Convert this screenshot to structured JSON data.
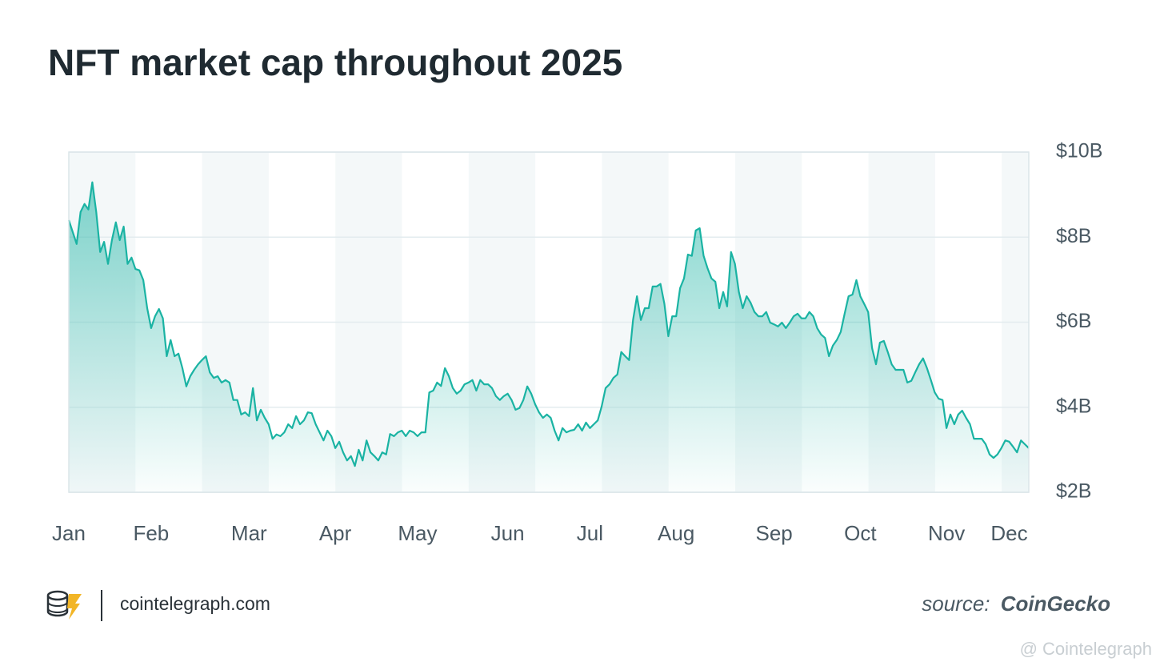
{
  "chart_data": {
    "type": "area",
    "title": "NFT market cap throughout 2025",
    "footer_site": "cointelegraph.com",
    "source_label": "source:",
    "source_name": "CoinGecko",
    "watermark": "@ Cointelegraph",
    "color": "#1ab3a3",
    "grid": true,
    "ylim": [
      2,
      10
    ],
    "yticks": [
      {
        "value": 2,
        "label": "$2B"
      },
      {
        "value": 4,
        "label": "$4B"
      },
      {
        "value": 6,
        "label": "$6B"
      },
      {
        "value": 8,
        "label": "$8B"
      },
      {
        "value": 10,
        "label": "$10B"
      }
    ],
    "categories": [
      "Jan",
      null,
      null,
      null,
      null,
      null,
      null,
      null,
      null,
      null,
      null,
      null,
      null,
      null,
      null,
      null,
      null,
      null,
      null,
      null,
      null,
      "Feb",
      null,
      null,
      null,
      null,
      null,
      null,
      null,
      null,
      null,
      null,
      null,
      null,
      null,
      null,
      null,
      null,
      null,
      null,
      null,
      null,
      null,
      null,
      null,
      null,
      "Mar",
      null,
      null,
      null,
      null,
      null,
      null,
      null,
      null,
      null,
      null,
      null,
      null,
      null,
      null,
      null,
      null,
      null,
      null,
      null,
      null,
      null,
      "Apr",
      null,
      null,
      null,
      null,
      null,
      null,
      null,
      null,
      null,
      null,
      null,
      null,
      null,
      null,
      null,
      null,
      null,
      null,
      null,
      null,
      "May",
      null,
      null,
      null,
      null,
      null,
      null,
      null,
      null,
      null,
      null,
      null,
      null,
      null,
      null,
      null,
      null,
      null,
      null,
      null,
      null,
      null,
      null,
      "Jun",
      null,
      null,
      null,
      null,
      null,
      null,
      null,
      null,
      null,
      null,
      null,
      null,
      null,
      null,
      null,
      null,
      null,
      null,
      null,
      null,
      "Jul",
      null,
      null,
      null,
      null,
      null,
      null,
      null,
      null,
      null,
      null,
      null,
      null,
      null,
      null,
      null,
      null,
      null,
      null,
      null,
      null,
      null,
      "Aug",
      null,
      null,
      null,
      null,
      null,
      null,
      null,
      null,
      null,
      null,
      null,
      null,
      null,
      null,
      null,
      null,
      null,
      null,
      null,
      null,
      null,
      null,
      null,
      null,
      "Sep",
      null,
      null,
      null,
      null,
      null,
      null,
      null,
      null,
      null,
      null,
      null,
      null,
      null,
      null,
      null,
      null,
      null,
      null,
      null,
      null,
      null,
      "Oct",
      null,
      null,
      null,
      null,
      null,
      null,
      null,
      null,
      null,
      null,
      null,
      null,
      null,
      null,
      null,
      null,
      null,
      null,
      null,
      null,
      null,
      "Nov",
      null,
      null,
      null,
      null,
      null,
      null,
      null,
      null,
      null,
      null,
      null,
      null,
      null,
      null,
      null,
      "Dec",
      null,
      null,
      null,
      null,
      null
    ],
    "values": [
      8.4,
      8.12,
      7.84,
      8.59,
      8.78,
      8.65,
      9.29,
      8.59,
      7.65,
      7.89,
      7.37,
      7.93,
      8.35,
      7.93,
      8.25,
      7.37,
      7.52,
      7.25,
      7.22,
      6.99,
      6.33,
      5.86,
      6.14,
      6.31,
      6.09,
      5.2,
      5.58,
      5.2,
      5.26,
      4.92,
      4.49,
      4.73,
      4.88,
      5.01,
      5.11,
      5.2,
      4.82,
      4.69,
      4.73,
      4.58,
      4.64,
      4.58,
      4.17,
      4.17,
      3.83,
      3.88,
      3.79,
      4.45,
      3.69,
      3.94,
      3.75,
      3.6,
      3.26,
      3.36,
      3.32,
      3.41,
      3.6,
      3.51,
      3.79,
      3.6,
      3.69,
      3.88,
      3.86,
      3.6,
      3.41,
      3.22,
      3.45,
      3.32,
      3.04,
      3.19,
      2.94,
      2.75,
      2.85,
      2.62,
      3.0,
      2.75,
      3.22,
      2.94,
      2.85,
      2.75,
      2.94,
      2.89,
      3.37,
      3.32,
      3.41,
      3.45,
      3.32,
      3.45,
      3.41,
      3.32,
      3.41,
      3.41,
      4.35,
      4.39,
      4.58,
      4.5,
      4.92,
      4.73,
      4.45,
      4.32,
      4.39,
      4.54,
      4.58,
      4.64,
      4.39,
      4.64,
      4.54,
      4.54,
      4.45,
      4.26,
      4.17,
      4.26,
      4.32,
      4.17,
      3.94,
      3.98,
      4.17,
      4.49,
      4.32,
      4.07,
      3.88,
      3.75,
      3.83,
      3.75,
      3.45,
      3.22,
      3.51,
      3.41,
      3.45,
      3.47,
      3.6,
      3.45,
      3.64,
      3.51,
      3.6,
      3.69,
      4.02,
      4.45,
      4.54,
      4.69,
      4.77,
      5.3,
      5.2,
      5.11,
      6.05,
      6.61,
      6.05,
      6.33,
      6.33,
      6.84,
      6.84,
      6.9,
      6.43,
      5.67,
      6.14,
      6.14,
      6.8,
      7.03,
      7.59,
      7.56,
      8.16,
      8.21,
      7.56,
      7.27,
      7.03,
      6.95,
      6.33,
      6.71,
      6.37,
      7.65,
      7.37,
      6.71,
      6.33,
      6.61,
      6.46,
      6.24,
      6.14,
      6.14,
      6.24,
      5.99,
      5.95,
      5.9,
      5.99,
      5.86,
      5.99,
      6.14,
      6.2,
      6.09,
      6.09,
      6.24,
      6.14,
      5.86,
      5.71,
      5.63,
      5.2,
      5.45,
      5.58,
      5.77,
      6.2,
      6.61,
      6.65,
      6.99,
      6.61,
      6.43,
      6.24,
      5.39,
      5.01,
      5.52,
      5.56,
      5.3,
      5.01,
      4.88,
      4.88,
      4.88,
      4.58,
      4.62,
      4.82,
      5.01,
      5.15,
      4.92,
      4.64,
      4.35,
      4.2,
      4.17,
      3.51,
      3.83,
      3.6,
      3.83,
      3.92,
      3.75,
      3.6,
      3.26,
      3.26,
      3.26,
      3.13,
      2.89,
      2.81,
      2.89,
      3.04,
      3.22,
      3.19,
      3.07,
      2.94,
      3.22,
      3.13,
      3.04
    ]
  }
}
